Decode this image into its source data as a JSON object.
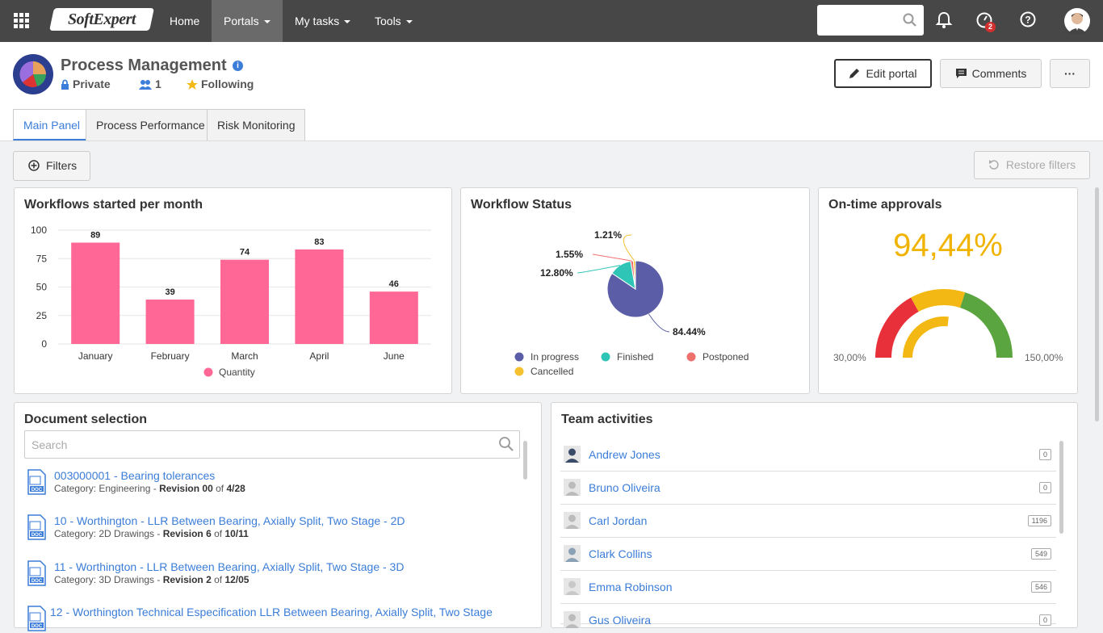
{
  "nav": {
    "logo": "SoftExpert",
    "home": "Home",
    "portals": "Portals",
    "tasks": "My tasks",
    "tools": "Tools",
    "notif_badge": "2"
  },
  "header": {
    "title": "Process Management",
    "privacy": "Private",
    "members": "1",
    "following": "Following",
    "edit_portal": "Edit portal",
    "comments": "Comments",
    "more": "···"
  },
  "tabs": [
    "Main Panel",
    "Process Performance",
    "Risk Monitoring"
  ],
  "toolbar": {
    "filters": "Filters",
    "restore": "Restore filters"
  },
  "workflows_card": {
    "title": "Workflows started per month",
    "legend": "Quantity"
  },
  "status_card": {
    "title": "Workflow Status"
  },
  "ontime_card": {
    "title": "On-time approvals",
    "value": "94,44%",
    "min": "30,00%",
    "max": "150,00%"
  },
  "docs_card": {
    "title": "Document selection",
    "search_placeholder": "Search",
    "items": [
      {
        "title": "003000001 - Bearing tolerances",
        "category": "Category: Engineering - ",
        "revision": "Revision 00",
        "of": " of ",
        "date": "4/28"
      },
      {
        "title": "10 - Worthington - LLR Between Bearing, Axially Split, Two Stage - 2D",
        "category": "Category: 2D Drawings - ",
        "revision": "Revision 6",
        "of": " of ",
        "date": "10/11"
      },
      {
        "title": "11 - Worthington - LLR Between Bearing, Axially Split, Two Stage - 3D",
        "category": "Category: 3D Drawings - ",
        "revision": "Revision 2",
        "of": " of ",
        "date": "12/05"
      },
      {
        "title": "12 - Worthington Technical Especification LLR Between Bearing, Axially Split, Two Stage",
        "category": "",
        "revision": "",
        "of": "",
        "date": ""
      }
    ]
  },
  "team_card": {
    "title": "Team activities",
    "members": [
      {
        "name": "Andrew Jones",
        "count": "0"
      },
      {
        "name": "Bruno Oliveira",
        "count": "0"
      },
      {
        "name": "Carl Jordan",
        "count": "1196"
      },
      {
        "name": "Clark Collins",
        "count": "549"
      },
      {
        "name": "Emma Robinson",
        "count": "546"
      },
      {
        "name": "Gus Oliveira",
        "count": "0"
      }
    ]
  },
  "colors": {
    "bar": "#ff6896",
    "in_progress": "#5b5ea6",
    "finished": "#2ec4b6",
    "postponed": "#ef6f6c",
    "cancelled": "#f6c12e",
    "gauge_red": "#e8303a",
    "gauge_yellow": "#f4b815",
    "gauge_green": "#5aa540"
  },
  "chart_data": [
    {
      "type": "bar",
      "title": "Workflows started per month",
      "categories": [
        "January",
        "February",
        "March",
        "April",
        "June"
      ],
      "series": [
        {
          "name": "Quantity",
          "values": [
            89,
            39,
            74,
            83,
            46
          ]
        }
      ],
      "ylim": [
        0,
        100
      ],
      "yticks": [
        0,
        25,
        50,
        75,
        100
      ],
      "legend": "bottom",
      "grid": true
    },
    {
      "type": "pie",
      "title": "Workflow Status",
      "slices": [
        {
          "label": "In progress",
          "value": 84.44,
          "text": "84.44%"
        },
        {
          "label": "Finished",
          "value": 12.8,
          "text": "12.80%"
        },
        {
          "label": "Postponed",
          "value": 1.55,
          "text": "1.55%"
        },
        {
          "label": "Cancelled",
          "value": 1.21,
          "text": "1.21%"
        }
      ],
      "legend": "bottom"
    },
    {
      "type": "gauge",
      "title": "On-time approvals",
      "value": 94.44,
      "min": 30,
      "max": 150
    }
  ]
}
